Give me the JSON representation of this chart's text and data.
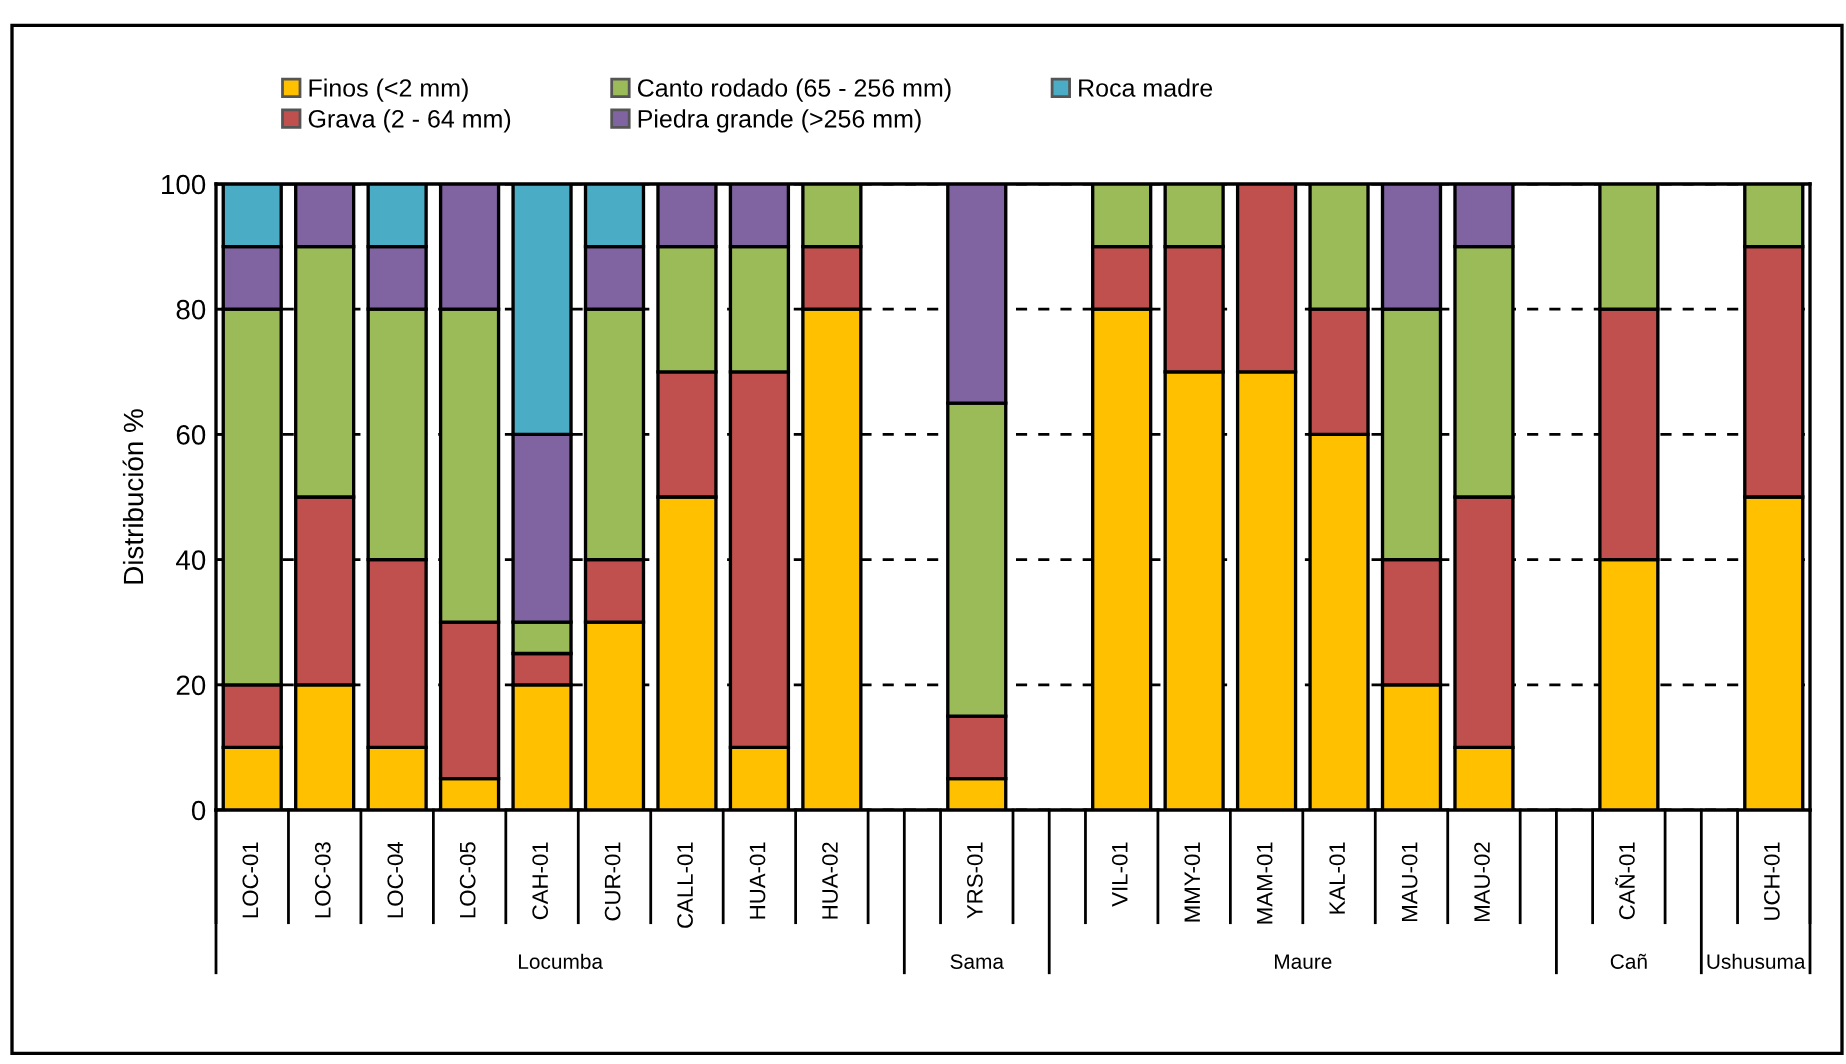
{
  "chart_data": {
    "type": "bar",
    "stacked": true,
    "ylabel": "Distribución %",
    "categories": [
      "LOC-01",
      "LOC-03",
      "LOC-04",
      "LOC-05",
      "CAH-01",
      "CUR-01",
      "CALL-01",
      "HUA-01",
      "HUA-02",
      null,
      "YRS-01",
      null,
      "VIL-01",
      "MMY-01",
      "MAM-01",
      "KAL-01",
      "MAU-01",
      "MAU-02",
      null,
      "CAÑ-01",
      null,
      "UCH-01"
    ],
    "series": [
      {
        "name": "Finos (<2 mm)",
        "color": "#ffc000",
        "values": [
          10,
          20,
          10,
          5,
          20,
          30,
          50,
          10,
          80,
          null,
          5,
          null,
          80,
          70,
          70,
          60,
          20,
          10,
          null,
          40,
          null,
          50
        ]
      },
      {
        "name": "Grava (2 - 64 mm)",
        "color": "#c0504d",
        "values": [
          10,
          30,
          30,
          25,
          5,
          10,
          20,
          60,
          10,
          null,
          10,
          null,
          10,
          20,
          30,
          20,
          20,
          40,
          null,
          40,
          null,
          40
        ]
      },
      {
        "name": "Canto rodado (65 - 256 mm)",
        "color": "#9bbb59",
        "values": [
          60,
          40,
          40,
          50,
          5,
          40,
          20,
          20,
          10,
          null,
          50,
          null,
          10,
          10,
          0,
          20,
          40,
          40,
          null,
          20,
          null,
          10
        ]
      },
      {
        "name": "Piedra grande (>256 mm)",
        "color": "#8064a2",
        "values": [
          10,
          10,
          10,
          20,
          30,
          10,
          10,
          10,
          0,
          null,
          35,
          null,
          0,
          0,
          0,
          0,
          20,
          10,
          null,
          0,
          null,
          0
        ]
      },
      {
        "name": "Roca madre",
        "color": "#4bacc6",
        "values": [
          10,
          0,
          10,
          0,
          40,
          10,
          0,
          0,
          0,
          null,
          0,
          null,
          0,
          0,
          0,
          0,
          0,
          0,
          null,
          0,
          null,
          0
        ]
      }
    ],
    "ylim": [
      0,
      100
    ],
    "yticks": [
      0,
      20,
      40,
      60,
      80,
      100
    ],
    "grid": "y",
    "legend": "top",
    "annotations": [
      "Locumba",
      "Sama",
      "Maure",
      "Cañ",
      "Ushusuma"
    ]
  }
}
